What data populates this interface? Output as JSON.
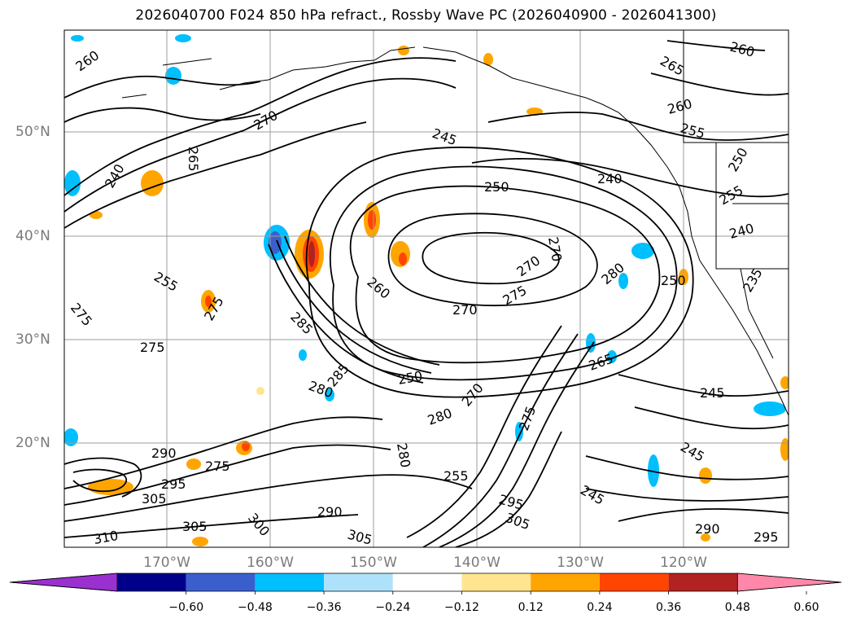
{
  "title": "2026040700 F024 850 hPa refract., Rossby Wave PC (2026040900 - 2026041300)",
  "lat_labels": [
    "50°N",
    "40°N",
    "30°N",
    "20°N"
  ],
  "lon_labels": [
    "170°W",
    "160°W",
    "150°W",
    "140°W",
    "130°W",
    "120°W"
  ],
  "colorbar": {
    "colors": [
      "#9b30d0",
      "#00008b",
      "#3a5fcd",
      "#00bfff",
      "#aee2fa",
      "#ffffff",
      "#ffe58f",
      "#ffa500",
      "#ff4500",
      "#b22222",
      "#ff88aa"
    ],
    "tick_labels": [
      "−0.60",
      "−0.48",
      "−0.36",
      "−0.24",
      "−0.12",
      "0.12",
      "0.24",
      "0.36",
      "0.48",
      "0.60"
    ]
  },
  "contour_labels": [
    "260",
    "265",
    "270",
    "275",
    "255",
    "245",
    "240",
    "250",
    "280",
    "285",
    "290",
    "295",
    "300",
    "305",
    "310",
    "235"
  ],
  "colors": {
    "contour": "#000000",
    "grid": "#9e9e9e",
    "coast": "#000000"
  }
}
